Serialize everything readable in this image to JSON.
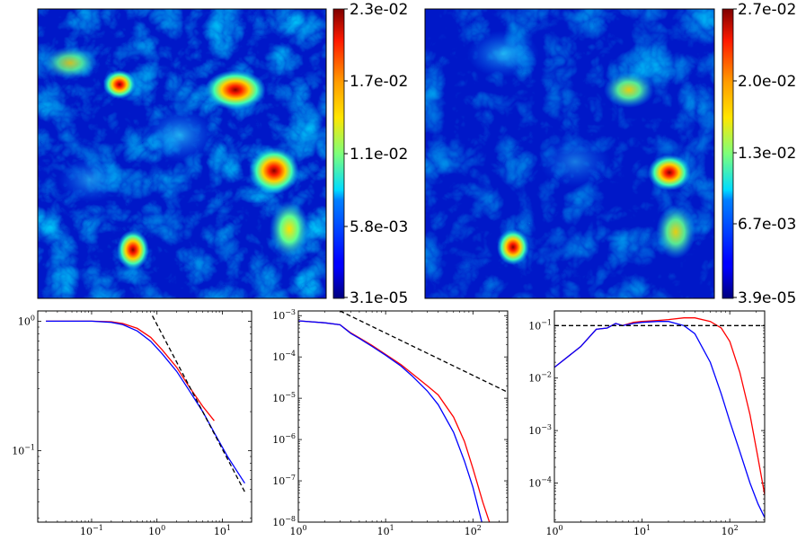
{
  "chart_data": [
    {
      "type": "heatmap",
      "panel": "top-left",
      "colormap": "jet",
      "colorbar_ticks": [
        "3.1e-05",
        "5.8e-03",
        "1.1e-02",
        "1.7e-02",
        "2.3e-02"
      ],
      "range": [
        3.1e-05,
        0.023
      ]
    },
    {
      "type": "heatmap",
      "panel": "top-right",
      "colormap": "jet",
      "colorbar_ticks": [
        "3.9e-05",
        "6.7e-03",
        "1.3e-02",
        "2.0e-02",
        "2.7e-02"
      ],
      "range": [
        3.9e-05,
        0.027
      ]
    },
    {
      "type": "line",
      "panel": "bottom-left",
      "xscale": "log",
      "yscale": "log",
      "xlim": [
        0.015,
        28
      ],
      "ylim": [
        0.028,
        1.2
      ],
      "xticks": [
        {
          "v": 0.1,
          "b": "10",
          "e": "−1"
        },
        {
          "v": 1,
          "b": "10",
          "e": "0"
        },
        {
          "v": 10,
          "b": "10",
          "e": "1"
        }
      ],
      "yticks": [
        {
          "v": 0.1,
          "b": "10",
          "e": "−1"
        },
        {
          "v": 1,
          "b": "10",
          "e": "0"
        }
      ],
      "series": [
        {
          "color": "#ff0000",
          "dash": false,
          "x": [
            0.02,
            0.05,
            0.1,
            0.2,
            0.3,
            0.5,
            0.8,
            1.2,
            2,
            3,
            5,
            7.5
          ],
          "y": [
            1.0,
            1.0,
            1.0,
            0.99,
            0.96,
            0.88,
            0.75,
            0.6,
            0.44,
            0.32,
            0.22,
            0.17
          ]
        },
        {
          "color": "#0000ff",
          "dash": false,
          "x": [
            0.02,
            0.05,
            0.1,
            0.2,
            0.3,
            0.5,
            0.8,
            1.2,
            2,
            3,
            5,
            8,
            12,
            22
          ],
          "y": [
            1.0,
            1.0,
            1.0,
            0.98,
            0.94,
            0.84,
            0.7,
            0.56,
            0.41,
            0.3,
            0.2,
            0.13,
            0.09,
            0.056
          ]
        },
        {
          "color": "#000000",
          "dash": true,
          "x": [
            0.85,
            22
          ],
          "y": [
            1.1,
            0.048
          ]
        }
      ]
    },
    {
      "type": "line",
      "panel": "bottom-middle",
      "xscale": "log",
      "yscale": "log",
      "xlim": [
        1,
        250
      ],
      "ylim": [
        1e-08,
        0.0013
      ],
      "xticks": [
        {
          "v": 1,
          "b": "10",
          "e": "0"
        },
        {
          "v": 10,
          "b": "10",
          "e": "1"
        },
        {
          "v": 100,
          "b": "10",
          "e": "2"
        }
      ],
      "yticks": [
        {
          "v": 1e-08,
          "b": "10",
          "e": "−8"
        },
        {
          "v": 1e-07,
          "b": "10",
          "e": "−7"
        },
        {
          "v": 1e-06,
          "b": "10",
          "e": "−6"
        },
        {
          "v": 1e-05,
          "b": "10",
          "e": "−5"
        },
        {
          "v": 0.0001,
          "b": "10",
          "e": "−4"
        },
        {
          "v": 0.001,
          "b": "10",
          "e": "−3"
        }
      ],
      "series": [
        {
          "color": "#ff0000",
          "dash": false,
          "x": [
            1,
            2,
            3,
            4,
            5,
            7,
            10,
            15,
            20,
            30,
            40,
            60,
            80,
            100,
            130,
            160
          ],
          "y": [
            0.00075,
            0.00067,
            0.0006,
            0.00038,
            0.00029,
            0.00019,
            0.000115,
            6.5e-05,
            4e-05,
            2e-05,
            1.2e-05,
            3.5e-06,
            9e-07,
            2e-07,
            3e-08,
            8e-09
          ]
        },
        {
          "color": "#0000ff",
          "dash": false,
          "x": [
            1,
            2,
            3,
            4,
            5,
            7,
            10,
            15,
            20,
            30,
            40,
            60,
            80,
            100,
            130
          ],
          "y": [
            0.00075,
            0.00067,
            0.0006,
            0.00037,
            0.00028,
            0.00018,
            0.00011,
            6e-05,
            3.5e-05,
            1.5e-05,
            7e-06,
            1.5e-06,
            3e-07,
            7e-08,
            8e-09
          ]
        },
        {
          "color": "#000000",
          "dash": true,
          "x": [
            3,
            250
          ],
          "y": [
            0.0013,
            1.4e-05
          ]
        }
      ]
    },
    {
      "type": "line",
      "panel": "bottom-right",
      "xscale": "log",
      "yscale": "log",
      "xlim": [
        1,
        250
      ],
      "ylim": [
        1.8e-05,
        0.19
      ],
      "xticks": [
        {
          "v": 1,
          "b": "10",
          "e": "0"
        },
        {
          "v": 10,
          "b": "10",
          "e": "1"
        },
        {
          "v": 100,
          "b": "10",
          "e": "2"
        }
      ],
      "yticks": [
        {
          "v": 0.0001,
          "b": "10",
          "e": "−4"
        },
        {
          "v": 0.001,
          "b": "10",
          "e": "−3"
        },
        {
          "v": 0.01,
          "b": "10",
          "e": "−2"
        },
        {
          "v": 0.1,
          "b": "10",
          "e": "−1"
        }
      ],
      "series": [
        {
          "color": "#ff0000",
          "dash": false,
          "x": [
            1,
            2,
            3,
            4,
            5,
            6,
            8,
            10,
            15,
            20,
            30,
            40,
            60,
            80,
            100,
            130,
            170,
            210,
            250
          ],
          "y": [
            0.016,
            0.04,
            0.085,
            0.09,
            0.11,
            0.1,
            0.115,
            0.12,
            0.125,
            0.13,
            0.14,
            0.14,
            0.12,
            0.09,
            0.05,
            0.013,
            0.002,
            0.0003,
            6e-05
          ]
        },
        {
          "color": "#0000ff",
          "dash": false,
          "x": [
            1,
            2,
            3,
            4,
            5,
            6,
            8,
            10,
            15,
            20,
            30,
            40,
            60,
            80,
            100,
            130,
            170,
            210,
            250
          ],
          "y": [
            0.016,
            0.04,
            0.085,
            0.09,
            0.11,
            0.1,
            0.11,
            0.115,
            0.12,
            0.12,
            0.1,
            0.07,
            0.02,
            0.005,
            0.0015,
            0.0004,
            0.0001,
            4e-05,
            2.2e-05
          ]
        },
        {
          "color": "#000000",
          "dash": true,
          "x": [
            1,
            250
          ],
          "y": [
            0.1,
            0.1
          ]
        }
      ]
    }
  ]
}
